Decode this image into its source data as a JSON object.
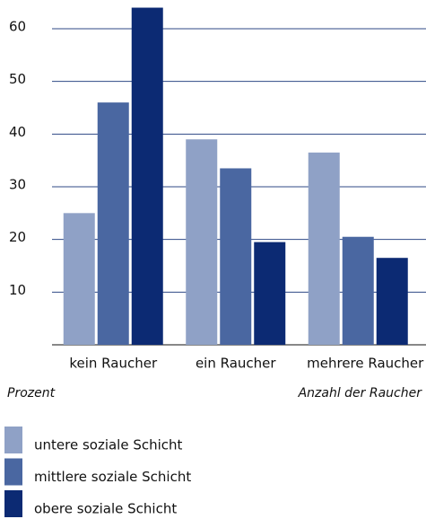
{
  "chart_data": {
    "type": "bar",
    "x_label": "Anzahl der Raucher",
    "y_label": "Prozent",
    "categories": [
      "kein Raucher",
      "ein Raucher",
      "mehrere Raucher"
    ],
    "series": [
      {
        "name": "untere soziale Schicht",
        "color": "#8fa1c6",
        "values": [
          25,
          39,
          36.5
        ]
      },
      {
        "name": "mittlere soziale Schicht",
        "color": "#4a67a1",
        "values": [
          46,
          33.5,
          20.5
        ]
      },
      {
        "name": "obere soziale Schicht",
        "color": "#0c2a73",
        "values": [
          64,
          19.5,
          16.5
        ]
      }
    ],
    "ylim": [
      0,
      65
    ],
    "yticks": [
      10,
      20,
      30,
      40,
      50,
      60
    ],
    "grid": true
  }
}
